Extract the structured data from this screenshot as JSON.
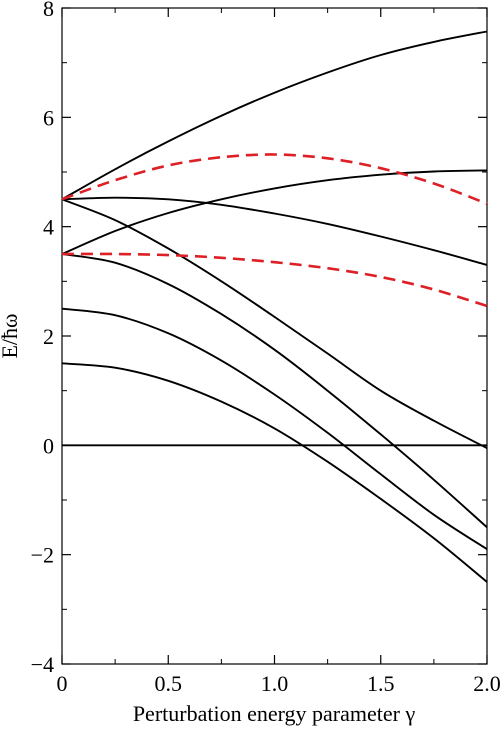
{
  "chart_data": {
    "type": "line",
    "title": "",
    "xlabel": "Perturbation energy parameter γ",
    "ylabel": "E/ħω",
    "xlim": [
      0,
      2.0
    ],
    "ylim": [
      -4,
      8
    ],
    "xticks": [
      0,
      0.5,
      1.0,
      1.5,
      2.0
    ],
    "xtick_labels": [
      "0",
      "0.5",
      "1.0",
      "1.5",
      "2.0"
    ],
    "yticks": [
      -4,
      -2,
      0,
      2,
      4,
      6,
      8
    ],
    "ytick_labels": [
      "−4",
      "−2",
      "0",
      "2",
      "4",
      "6",
      "8"
    ],
    "grid": false,
    "legend": "none",
    "series": [
      {
        "style": "solid",
        "color": "#000000",
        "x": [
          0,
          0.25,
          0.5,
          0.75,
          1.0,
          1.25,
          1.5,
          1.75,
          2.0
        ],
        "y": [
          1.5,
          1.42,
          1.18,
          0.8,
          0.31,
          -0.3,
          -0.98,
          -1.7,
          -2.5
        ]
      },
      {
        "style": "solid",
        "color": "#000000",
        "x": [
          0,
          0.25,
          0.5,
          0.75,
          1.0,
          1.25,
          1.5,
          1.75,
          2.0
        ],
        "y": [
          2.5,
          2.38,
          2.05,
          1.55,
          0.93,
          0.23,
          -0.53,
          -1.27,
          -1.9
        ]
      },
      {
        "style": "solid",
        "color": "#000000",
        "x": [
          0,
          0.25,
          0.5,
          0.75,
          1.0,
          1.25,
          1.5,
          1.75,
          2.0
        ],
        "y": [
          3.5,
          3.34,
          2.95,
          2.4,
          1.75,
          1.0,
          0.2,
          -0.63,
          -1.5
        ]
      },
      {
        "style": "solid",
        "color": "#000000",
        "x": [
          0,
          0.25,
          0.5,
          0.75,
          1.0,
          1.25,
          1.5,
          1.75,
          2.0
        ],
        "y": [
          4.5,
          4.12,
          3.6,
          3.0,
          2.35,
          1.68,
          1.0,
          0.45,
          -0.05
        ]
      },
      {
        "style": "solid",
        "color": "#000000",
        "x": [
          0,
          0.25,
          0.5,
          0.75,
          1.0,
          1.25,
          1.5,
          1.75,
          2.0
        ],
        "y": [
          4.5,
          4.53,
          4.5,
          4.4,
          4.24,
          4.05,
          3.82,
          3.57,
          3.3
        ]
      },
      {
        "style": "solid",
        "color": "#000000",
        "x": [
          0,
          0.25,
          0.5,
          0.75,
          1.0,
          1.25,
          1.5,
          1.75,
          2.0
        ],
        "y": [
          3.5,
          3.92,
          4.25,
          4.5,
          4.7,
          4.85,
          4.95,
          5.01,
          5.03
        ]
      },
      {
        "style": "solid",
        "color": "#000000",
        "x": [
          0,
          0.25,
          0.5,
          0.75,
          1.0,
          1.25,
          1.5,
          1.75,
          2.0
        ],
        "y": [
          4.5,
          5.05,
          5.56,
          6.03,
          6.45,
          6.82,
          7.14,
          7.38,
          7.57
        ]
      },
      {
        "style": "dashed",
        "color": "#dd1f26",
        "x": [
          0,
          0.25,
          0.5,
          0.75,
          1.0,
          1.25,
          1.5,
          1.75,
          2.0
        ],
        "y": [
          4.5,
          4.85,
          5.12,
          5.27,
          5.32,
          5.25,
          5.07,
          4.79,
          4.42
        ]
      },
      {
        "style": "dashed",
        "color": "#dd1f26",
        "x": [
          0,
          0.25,
          0.5,
          0.75,
          1.0,
          1.25,
          1.5,
          1.75,
          2.0
        ],
        "y": [
          3.5,
          3.5,
          3.48,
          3.43,
          3.35,
          3.24,
          3.08,
          2.85,
          2.55
        ]
      },
      {
        "style": "solid",
        "color": "#000000",
        "x": [
          0,
          2.0
        ],
        "y": [
          0,
          0
        ]
      }
    ]
  }
}
